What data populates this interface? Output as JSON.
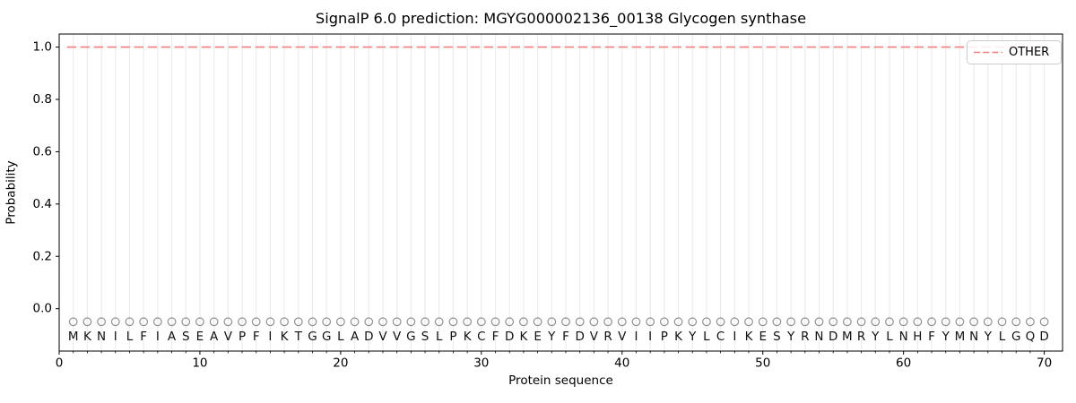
{
  "chart_data": {
    "type": "line",
    "title": "SignalP 6.0 prediction: MGYG000002136_00138 Glycogen synthase",
    "xlabel": "Protein sequence",
    "ylabel": "Probability",
    "xlim": [
      0,
      71.3
    ],
    "ylim": [
      -0.162,
      1.05
    ],
    "xticks": {
      "major_values": [
        0,
        10,
        20,
        30,
        40,
        50,
        60,
        70
      ],
      "major_labels": [
        "0",
        "10",
        "20",
        "30",
        "40",
        "50",
        "60",
        "70"
      ],
      "minor_at_every_residue": true
    },
    "yticks": {
      "values": [
        0.0,
        0.2,
        0.4,
        0.6,
        0.8,
        1.0
      ],
      "labels": [
        "0.0",
        "0.2",
        "0.4",
        "0.6",
        "0.8",
        "1.0"
      ]
    },
    "grid": {
      "vertical_per_residue": true,
      "color": "#ececec"
    },
    "series": [
      {
        "name": "OTHER",
        "linestyle": "dashed",
        "color": "#f08080",
        "x_start": 1,
        "x_end": 70,
        "constant_value": 1.0
      }
    ],
    "legend": {
      "location": "upper right",
      "entries": [
        {
          "label": "OTHER",
          "color": "#f08080",
          "linestyle": "dashed"
        }
      ]
    },
    "sequence": {
      "letters": "MKNILFIASEAVPFIKTGGLADVVGSLPKCFDKEYFDVRVIIPKYLCIKESYRNDMRYLNHFYMNYLGQD",
      "length": 70,
      "first_position": 1,
      "marker": {
        "shape": "open-circle",
        "color": "#8f8f8f",
        "y_value": -0.05
      },
      "letter_y_value": -0.108
    }
  }
}
